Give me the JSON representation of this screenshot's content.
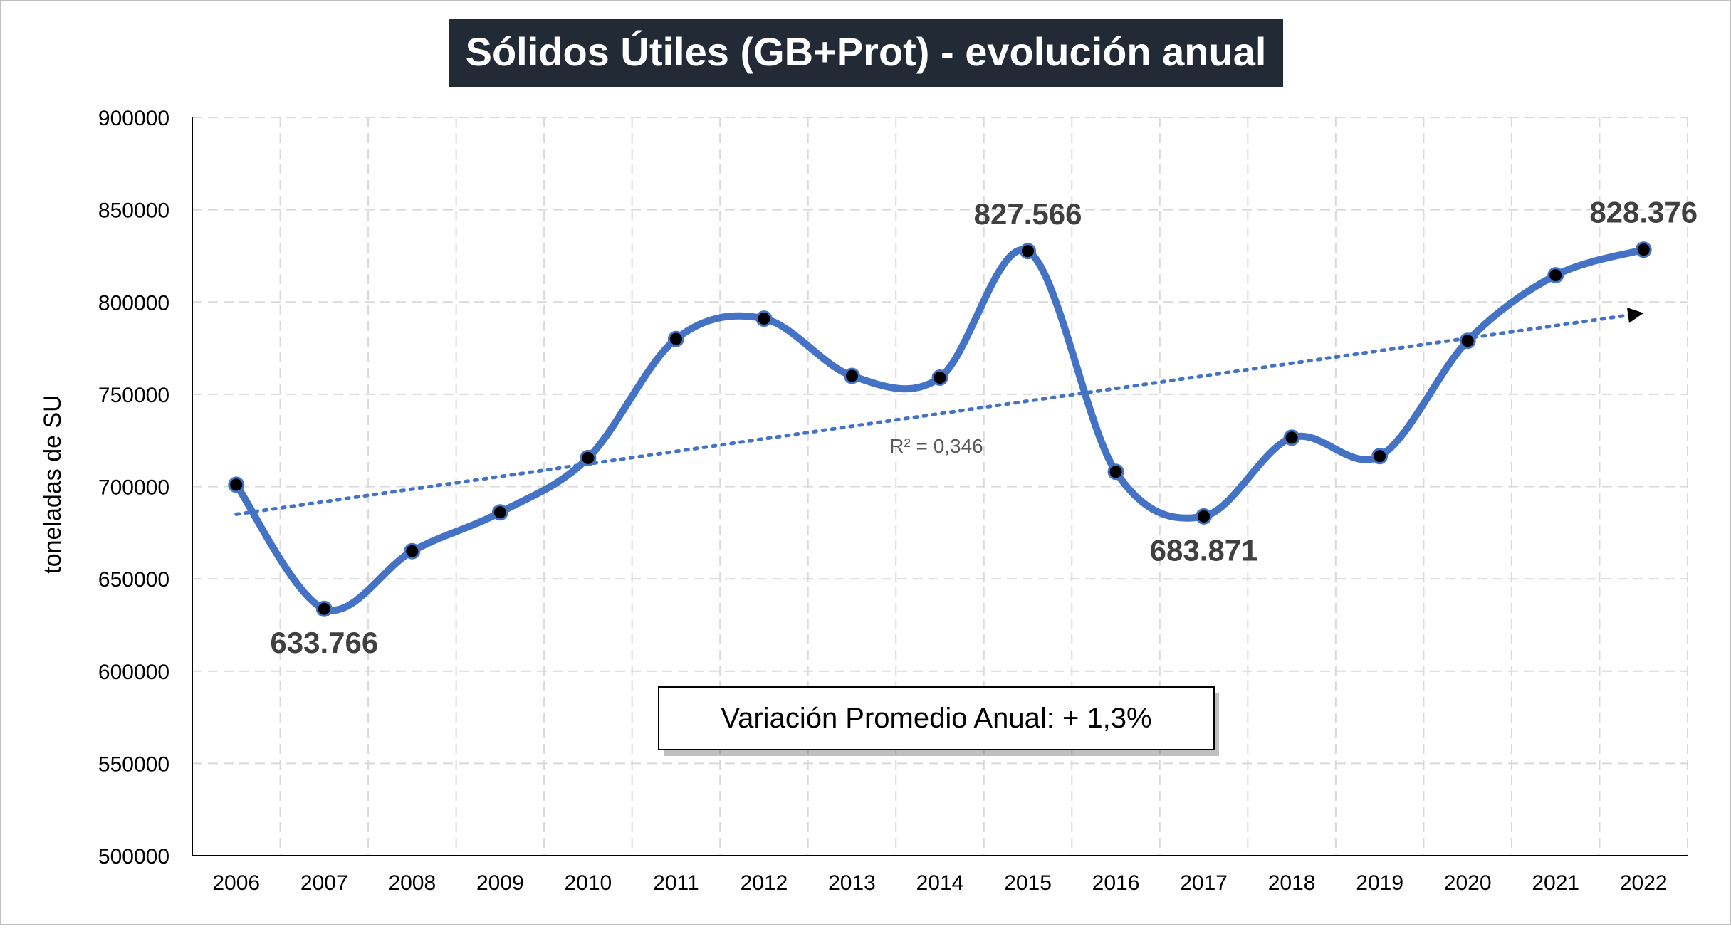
{
  "chart_data": {
    "type": "line",
    "title": "Sólidos Útiles (GB+Prot) - evolución anual",
    "ylabel": "toneladas de SU",
    "xlabel": "",
    "ylim": [
      500000,
      900000
    ],
    "yticks": [
      "500000",
      "550000",
      "600000",
      "650000",
      "700000",
      "750000",
      "800000",
      "850000",
      "900000"
    ],
    "categories": [
      "2006",
      "2007",
      "2008",
      "2009",
      "2010",
      "2011",
      "2012",
      "2013",
      "2014",
      "2015",
      "2016",
      "2017",
      "2018",
      "2019",
      "2020",
      "2021",
      "2022"
    ],
    "series": [
      {
        "values": [
          701000,
          633766,
          665000,
          686000,
          715500,
          780000,
          791000,
          760000,
          759000,
          827566,
          708000,
          683871,
          726500,
          716500,
          779000,
          814500,
          828376
        ]
      }
    ],
    "data_labels": [
      {
        "category": "2007",
        "value": 633766,
        "text": "633.766",
        "placement": "below"
      },
      {
        "category": "2015",
        "value": 827566,
        "text": "827.566",
        "placement": "above"
      },
      {
        "category": "2017",
        "value": 683871,
        "text": "683.871",
        "placement": "below"
      },
      {
        "category": "2022",
        "value": 828376,
        "text": "828.376",
        "placement": "above"
      }
    ],
    "trendline": {
      "type": "linear",
      "start": 685000,
      "end": 794000,
      "label": "R² = 0,346"
    },
    "annotation": "Variación Promedio Anual: + 1,3%",
    "grid": true,
    "legend": "none",
    "colors": {
      "line": "#4472C4",
      "marker": "#000000",
      "trend": "#4472C4",
      "title_bg": "#222A35",
      "title_text": "#FFFFFF",
      "grid": "#D9D9D9",
      "label_text": "#404040"
    }
  }
}
